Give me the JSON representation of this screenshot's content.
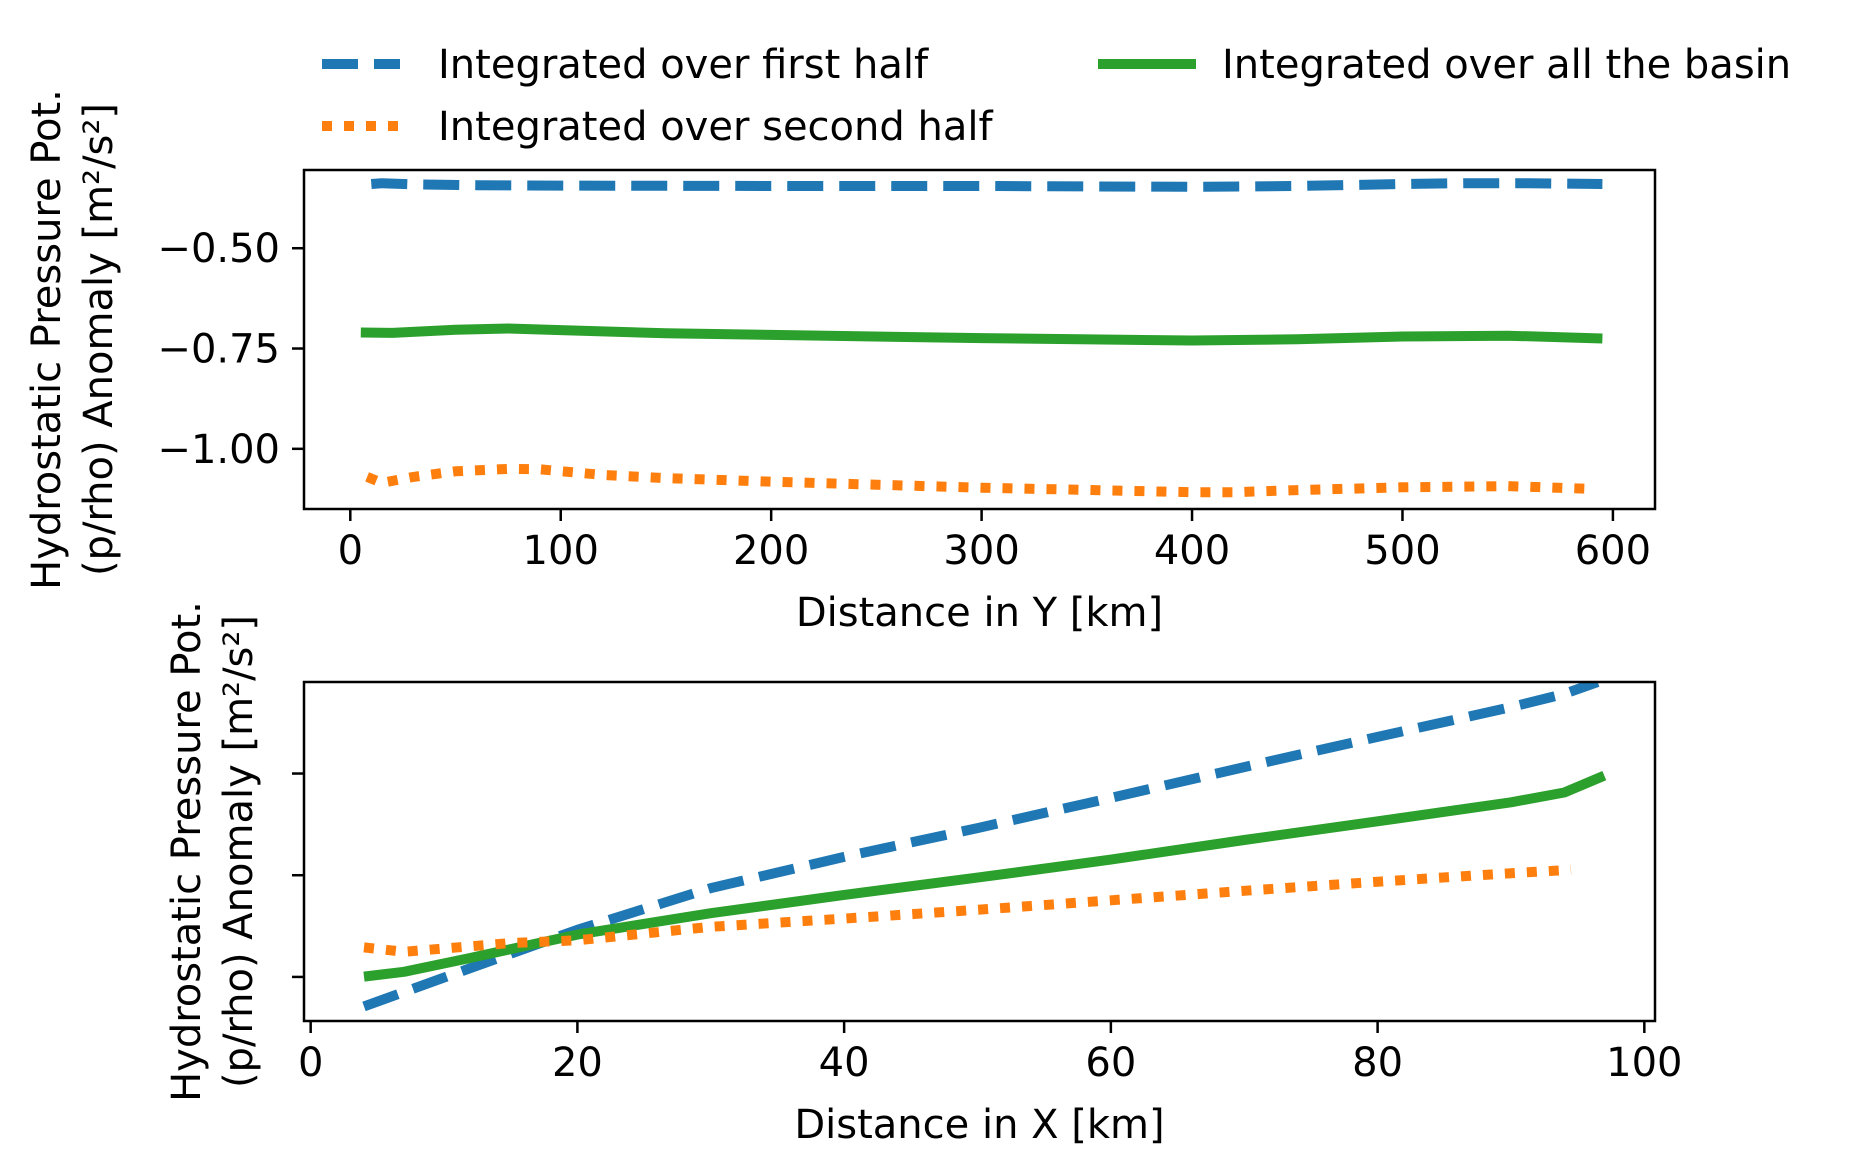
{
  "legend": {
    "placement": "top",
    "entries": [
      {
        "label": "Integrated over first half",
        "color": "#1f77b4",
        "style": "dashed"
      },
      {
        "label": "Integrated over all the basin",
        "color": "#2ca02c",
        "style": "solid"
      },
      {
        "label": "Integrated over second half",
        "color": "#ff7f0e",
        "style": "dotted"
      }
    ]
  },
  "chart_data": [
    {
      "type": "line",
      "xlabel": "Distance in Y [km]",
      "ylabel_line1": "Hydrostatic Pressure Pot.",
      "ylabel_line2": "(p/rho) Anomaly [m²/s²]",
      "xlim": [
        -22,
        620
      ],
      "ylim": [
        -1.15,
        -0.305
      ],
      "xticks": [
        0,
        100,
        200,
        300,
        400,
        500,
        600
      ],
      "xtick_labels": [
        "0",
        "100",
        "200",
        "300",
        "400",
        "500",
        "600"
      ],
      "yticks": [
        -1.0,
        -0.75,
        -0.5
      ],
      "ytick_labels": [
        "−1.00",
        "−0.75",
        "−0.50"
      ],
      "grid": false,
      "series": [
        {
          "name": "Integrated over first half",
          "color": "#1f77b4",
          "style": "dashed",
          "x": [
            10,
            15,
            30,
            60,
            100,
            200,
            300,
            400,
            450,
            500,
            530,
            560,
            595
          ],
          "y": [
            -0.34,
            -0.338,
            -0.341,
            -0.343,
            -0.344,
            -0.345,
            -0.345,
            -0.347,
            -0.345,
            -0.34,
            -0.338,
            -0.338,
            -0.34
          ]
        },
        {
          "name": "Integrated over all the basin",
          "color": "#2ca02c",
          "style": "solid",
          "x": [
            5,
            20,
            50,
            75,
            100,
            150,
            200,
            300,
            400,
            450,
            500,
            550,
            595
          ],
          "y": [
            -0.71,
            -0.711,
            -0.703,
            -0.7,
            -0.704,
            -0.712,
            -0.716,
            -0.724,
            -0.73,
            -0.727,
            -0.72,
            -0.718,
            -0.725
          ]
        },
        {
          "name": "Integrated over second half",
          "color": "#ff7f0e",
          "style": "dotted",
          "x": [
            8,
            15,
            30,
            50,
            75,
            90,
            120,
            150,
            200,
            300,
            400,
            420,
            450,
            500,
            550,
            590
          ],
          "y": [
            -1.07,
            -1.085,
            -1.07,
            -1.056,
            -1.05,
            -1.051,
            -1.065,
            -1.073,
            -1.082,
            -1.097,
            -1.108,
            -1.108,
            -1.103,
            -1.096,
            -1.093,
            -1.1
          ]
        }
      ]
    },
    {
      "type": "line",
      "xlabel": "Distance in X [km]",
      "ylabel_line1": "Hydrostatic Pressure Pot.",
      "ylabel_line2": "(p/rho) Anomaly [m²/s²]",
      "xlim": [
        -0.5,
        100.8
      ],
      "ylim": [
        0,
        100
      ],
      "xticks": [
        0,
        20,
        40,
        60,
        80,
        100
      ],
      "xtick_labels": [
        "0",
        "20",
        "40",
        "60",
        "80",
        "100"
      ],
      "yticks": [
        13,
        43,
        73
      ],
      "ytick_labels": [
        "",
        "",
        ""
      ],
      "grid": false,
      "series": [
        {
          "name": "Integrated over first half",
          "color": "#1f77b4",
          "style": "dashed",
          "x": [
            4,
            10,
            20,
            30,
            40,
            50,
            60,
            70,
            80,
            90,
            94,
            96.5
          ],
          "y": [
            4.3,
            12.8,
            26.9,
            39.2,
            48.4,
            56.9,
            65.8,
            74.9,
            83.8,
            92.6,
            96.5,
            100
          ]
        },
        {
          "name": "Integrated over all the basin",
          "color": "#2ca02c",
          "style": "solid",
          "x": [
            4,
            7,
            12,
            20,
            30,
            40,
            50,
            60,
            70,
            80,
            90,
            94,
            97
          ],
          "y": [
            13.1,
            14.5,
            18.6,
            25.5,
            31.8,
            37.2,
            42.3,
            47.6,
            53.4,
            58.9,
            64.5,
            67.4,
            72.4
          ]
        },
        {
          "name": "Integrated over second half",
          "color": "#ff7f0e",
          "style": "dotted",
          "x": [
            4,
            7,
            15,
            20,
            30,
            40,
            50,
            60,
            70,
            80,
            90,
            94.5
          ],
          "y": [
            21.7,
            20.4,
            23,
            23.8,
            27.8,
            30.2,
            32.8,
            35.6,
            38.4,
            41.1,
            43.6,
            44.6
          ]
        }
      ]
    }
  ]
}
